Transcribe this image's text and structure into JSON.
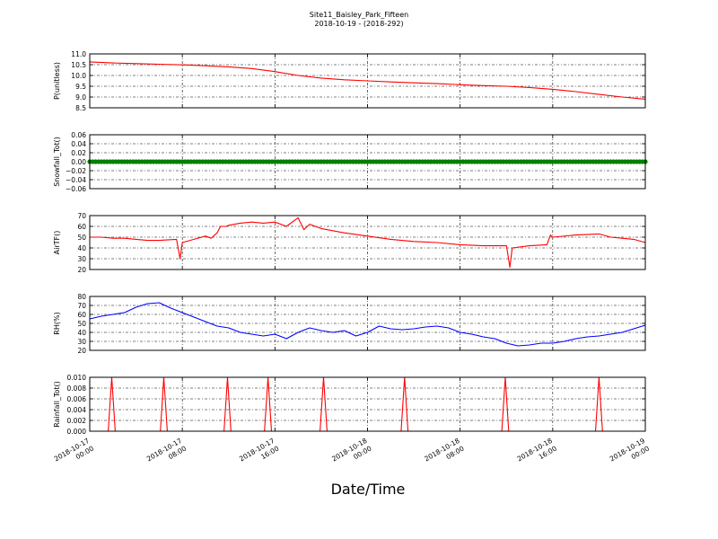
{
  "title": "Site11_Baisley_Park_Fifteen",
  "subtitle": "2018-10-19 - (2018-292)",
  "xlabel": "Date/Time",
  "x_ticks": [
    {
      "line1": "2018-10-17",
      "line2": "00:00"
    },
    {
      "line1": "2018-10-17",
      "line2": "08:00"
    },
    {
      "line1": "2018-10-17",
      "line2": "16:00"
    },
    {
      "line1": "2018-10-18",
      "line2": "00:00"
    },
    {
      "line1": "2018-10-18",
      "line2": "08:00"
    },
    {
      "line1": "2018-10-18",
      "line2": "16:00"
    },
    {
      "line1": "2018-10-19",
      "line2": "00:00"
    }
  ],
  "chart_data": [
    {
      "type": "line",
      "ylabel": "P(unitless)",
      "color": "#ff0000",
      "ylim": [
        8.5,
        11.0
      ],
      "yticks": [
        "8.5",
        "9.0",
        "9.5",
        "10.0",
        "10.5",
        "11.0"
      ],
      "xlim": [
        "2018-10-17 00:00",
        "2018-10-19 00:00"
      ],
      "grid": true,
      "x_hours": [
        0,
        2,
        4,
        6,
        8,
        10,
        12,
        14,
        16,
        18,
        20,
        22,
        24,
        26,
        28,
        30,
        32,
        34,
        36,
        38,
        40,
        42,
        44,
        46,
        48
      ],
      "values": [
        10.63,
        10.58,
        10.55,
        10.52,
        10.49,
        10.45,
        10.4,
        10.32,
        10.18,
        10.0,
        9.88,
        9.8,
        9.75,
        9.7,
        9.66,
        9.62,
        9.57,
        9.53,
        9.5,
        9.44,
        9.36,
        9.25,
        9.12,
        9.0,
        8.9
      ]
    },
    {
      "type": "line",
      "ylabel": "Snowfall_Tot()",
      "color": "#008000",
      "marker": "circle",
      "ylim": [
        -0.06,
        0.06
      ],
      "yticks": [
        "−0.06",
        "−0.04",
        "−0.02",
        "0.00",
        "0.02",
        "0.04",
        "0.06"
      ],
      "xlim": [
        "2018-10-17 00:00",
        "2018-10-19 00:00"
      ],
      "grid": true,
      "x_hours": [
        0,
        48
      ],
      "values": [
        0,
        0
      ],
      "constant": 0.0
    },
    {
      "type": "line",
      "ylabel": "AirTF()",
      "color": "#ff0000",
      "ylim": [
        20,
        70
      ],
      "yticks": [
        "20",
        "30",
        "40",
        "50",
        "60",
        "70"
      ],
      "xlim": [
        "2018-10-17 00:00",
        "2018-10-19 00:00"
      ],
      "grid": true,
      "x_hours": [
        0,
        1,
        2,
        3,
        4,
        5,
        6,
        7.5,
        7.8,
        8,
        9,
        10,
        10.5,
        11,
        11.3,
        11.8,
        12,
        13,
        14,
        15,
        16,
        17,
        18,
        18.5,
        19,
        19.5,
        20,
        21,
        22,
        24,
        26,
        28,
        30,
        32,
        34,
        36,
        36.3,
        36.5,
        38,
        39.5,
        39.8,
        40,
        42,
        44,
        45,
        46,
        47,
        48
      ],
      "values": [
        50,
        50,
        49,
        49,
        48,
        47,
        47,
        48,
        30,
        45,
        48,
        51,
        49,
        54,
        60,
        60,
        61,
        63,
        64,
        63,
        64,
        60,
        68,
        57,
        62,
        60,
        58,
        56,
        54,
        51,
        48,
        46,
        45,
        43,
        42,
        42,
        22,
        40,
        42,
        43,
        52,
        50,
        52,
        53,
        50,
        49,
        48,
        45
      ]
    },
    {
      "type": "line",
      "ylabel": "RH(%)",
      "color": "#0000ff",
      "ylim": [
        20,
        80
      ],
      "yticks": [
        "20",
        "30",
        "40",
        "50",
        "60",
        "70",
        "80"
      ],
      "xlim": [
        "2018-10-17 00:00",
        "2018-10-19 00:00"
      ],
      "grid": true,
      "x_hours": [
        0,
        1,
        2,
        3,
        4,
        5,
        6,
        7,
        8,
        9,
        10,
        11,
        12,
        13,
        14,
        15,
        16,
        17,
        18,
        19,
        20,
        21,
        22,
        23,
        24,
        25,
        26,
        27,
        28,
        29,
        30,
        31,
        32,
        33,
        34,
        35,
        36,
        37,
        38,
        39,
        40,
        41,
        42,
        43,
        44,
        45,
        46,
        47,
        48
      ],
      "values": [
        55,
        58,
        60,
        62,
        68,
        72,
        73,
        67,
        62,
        57,
        52,
        47,
        45,
        40,
        38,
        36,
        38,
        33,
        40,
        45,
        42,
        40,
        42,
        36,
        40,
        47,
        44,
        43,
        44,
        46,
        47,
        45,
        40,
        38,
        35,
        33,
        28,
        25,
        26,
        28,
        28,
        30,
        33,
        35,
        36,
        38,
        40,
        44,
        48
      ]
    },
    {
      "type": "line",
      "ylabel": "Rainfall_Tot()",
      "color": "#ff0000",
      "ylim": [
        0.0,
        0.01
      ],
      "yticks": [
        "0.000",
        "0.002",
        "0.004",
        "0.006",
        "0.008",
        "0.010"
      ],
      "xlim": [
        "2018-10-17 00:00",
        "2018-10-19 00:00"
      ],
      "grid": true,
      "x_hours": [
        0,
        1.6,
        1.9,
        2.2,
        6.1,
        6.4,
        6.7,
        11.6,
        11.9,
        12.2,
        15.1,
        15.4,
        15.7,
        19.9,
        20.2,
        20.5,
        26.9,
        27.2,
        27.5,
        35.6,
        35.9,
        36.2,
        43.7,
        44.0,
        44.3,
        48
      ],
      "values": [
        0,
        0,
        0.01,
        0,
        0,
        0.01,
        0,
        0,
        0.01,
        0,
        0,
        0.01,
        0,
        0,
        0.01,
        0,
        0,
        0.01,
        0,
        0,
        0.01,
        0,
        0,
        0.01,
        0,
        0
      ]
    }
  ]
}
